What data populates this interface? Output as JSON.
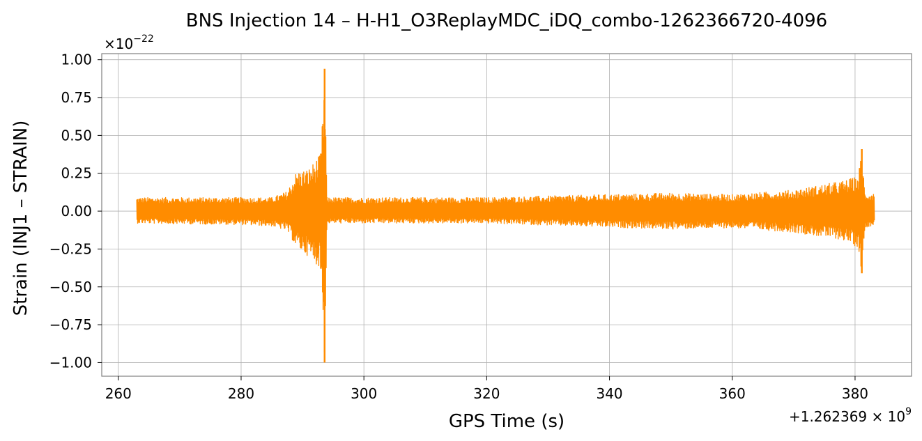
{
  "chart_data": {
    "type": "line",
    "title": "BNS Injection 14 – H-H1_O3ReplayMDC_iDQ_combo-1262366720-4096",
    "xlabel": "GPS Time (s)",
    "ylabel": "Strain (INJ1 – STRAIN)",
    "x_offset_label": "+1.262369 × 10",
    "x_offset_exponent": "9",
    "y_scale_label": "×10",
    "y_scale_exponent": "−22",
    "xlim": [
      257.3,
      389.2
    ],
    "ylim": [
      -1.09,
      1.04
    ],
    "x_ticks": [
      260,
      280,
      300,
      320,
      340,
      360,
      380
    ],
    "x_tick_labels": [
      "260",
      "280",
      "300",
      "320",
      "340",
      "360",
      "380"
    ],
    "y_ticks": [
      1.0,
      0.75,
      0.5,
      0.25,
      0.0,
      -0.25,
      -0.5,
      -0.75,
      -1.0
    ],
    "y_tick_labels": [
      "1.00",
      "0.75",
      "0.50",
      "0.25",
      "0.00",
      "−0.25",
      "−0.50",
      "−0.75",
      "−1.00"
    ],
    "grid": true,
    "series": [
      {
        "color": "#ff8c00",
        "x_range": [
          263.0,
          383.2
        ],
        "baseline_envelope": 0.07,
        "envelope_points": [
          {
            "x": 263.0,
            "upper": 0.09,
            "lower": -0.08
          },
          {
            "x": 280.0,
            "upper": 0.09,
            "lower": -0.09
          },
          {
            "x": 285.0,
            "upper": 0.09,
            "lower": -0.1
          },
          {
            "x": 287.5,
            "upper": 0.13,
            "lower": -0.13
          },
          {
            "x": 289.0,
            "upper": 0.26,
            "lower": -0.24
          },
          {
            "x": 291.0,
            "upper": 0.28,
            "lower": -0.3
          },
          {
            "x": 293.0,
            "upper": 0.38,
            "lower": -0.38
          },
          {
            "x": 293.6,
            "upper": 0.94,
            "lower": -1.0
          },
          {
            "x": 294.0,
            "upper": 0.09,
            "lower": -0.08
          },
          {
            "x": 320.0,
            "upper": 0.09,
            "lower": -0.08
          },
          {
            "x": 350.0,
            "upper": 0.12,
            "lower": -0.12
          },
          {
            "x": 360.0,
            "upper": 0.11,
            "lower": -0.11
          },
          {
            "x": 370.0,
            "upper": 0.14,
            "lower": -0.14
          },
          {
            "x": 378.0,
            "upper": 0.2,
            "lower": -0.19
          },
          {
            "x": 380.5,
            "upper": 0.23,
            "lower": -0.24
          },
          {
            "x": 381.1,
            "upper": 0.41,
            "lower": -0.41
          },
          {
            "x": 381.6,
            "upper": 0.12,
            "lower": -0.11
          },
          {
            "x": 383.2,
            "upper": 0.12,
            "lower": -0.09
          }
        ]
      }
    ]
  }
}
